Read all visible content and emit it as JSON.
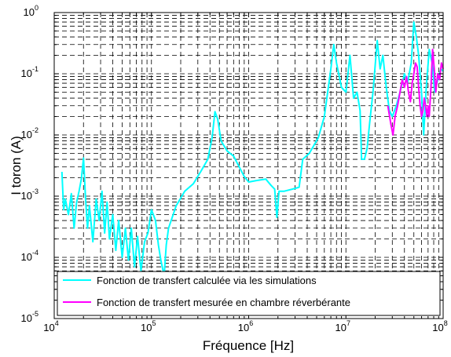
{
  "chart_data": {
    "type": "line",
    "xlabel": "Fréquence [Hz]",
    "ylabel": "I toron (A)",
    "x_scale": "log",
    "y_scale": "log",
    "xlim": [
      10000,
      100000000
    ],
    "ylim": [
      1e-05,
      1
    ],
    "grid": true,
    "legend_position": "bottom",
    "x_ticks": [
      {
        "base": "10",
        "exp": "4",
        "value": 10000
      },
      {
        "base": "10",
        "exp": "5",
        "value": 100000
      },
      {
        "base": "10",
        "exp": "6",
        "value": 1000000
      },
      {
        "base": "10",
        "exp": "7",
        "value": 10000000
      },
      {
        "base": "10",
        "exp": "8",
        "value": 100000000
      }
    ],
    "y_ticks": [
      {
        "base": "10",
        "exp": "-5",
        "value": 1e-05
      },
      {
        "base": "10",
        "exp": "-4",
        "value": 0.0001
      },
      {
        "base": "10",
        "exp": "-3",
        "value": 0.001
      },
      {
        "base": "10",
        "exp": "-2",
        "value": 0.01
      },
      {
        "base": "10",
        "exp": "-1",
        "value": 0.1
      },
      {
        "base": "10",
        "exp": "0",
        "value": 1
      }
    ],
    "series": [
      {
        "name": "Fonction de transfert calculée via les simulations",
        "color": "#00ffff",
        "points": [
          [
            12000,
            0.0025
          ],
          [
            12500,
            0.0006
          ],
          [
            13000,
            0.0009
          ],
          [
            14000,
            0.0005
          ],
          [
            15000,
            0.0011
          ],
          [
            16000,
            0.0003
          ],
          [
            17000,
            0.0008
          ],
          [
            18000,
            0.0012
          ],
          [
            19000,
            0.0019
          ],
          [
            20000,
            0.0042
          ],
          [
            21000,
            0.0009
          ],
          [
            22000,
            0.0003
          ],
          [
            23000,
            0.0007
          ],
          [
            25000,
            0.00018
          ],
          [
            27000,
            0.0009
          ],
          [
            29000,
            0.0004
          ],
          [
            31000,
            0.0012
          ],
          [
            33000,
            0.00025
          ],
          [
            35000,
            0.0008
          ],
          [
            37000,
            0.0002
          ],
          [
            40000,
            0.0005
          ],
          [
            43000,
            0.00013
          ],
          [
            46000,
            0.0004
          ],
          [
            50000,
            0.0001
          ],
          [
            54000,
            0.0003
          ],
          [
            58000,
            9e-05
          ],
          [
            62000,
            0.0003
          ],
          [
            67000,
            7e-05
          ],
          [
            72000,
            0.00022
          ],
          [
            78000,
            6e-05
          ],
          [
            85000,
            0.00018
          ],
          [
            92000,
            0.00025
          ],
          [
            100000,
            0.0006
          ],
          [
            110000,
            0.0004
          ],
          [
            118000,
            0.00016
          ],
          [
            125000,
            9e-05
          ],
          [
            135000,
            5e-05
          ],
          [
            142000,
            0.00016
          ],
          [
            150000,
            0.0003
          ],
          [
            180000,
            0.0007
          ],
          [
            220000,
            0.0012
          ],
          [
            270000,
            0.0016
          ],
          [
            320000,
            0.0025
          ],
          [
            380000,
            0.004
          ],
          [
            420000,
            0.009
          ],
          [
            450000,
            0.024
          ],
          [
            480000,
            0.018
          ],
          [
            520000,
            0.008
          ],
          [
            600000,
            0.0055
          ],
          [
            700000,
            0.0045
          ],
          [
            800000,
            0.003
          ],
          [
            900000,
            0.0021
          ],
          [
            1000000,
            0.0017
          ],
          [
            1200000,
            0.0018
          ],
          [
            1500000,
            0.0019
          ],
          [
            1700000,
            0.0015
          ],
          [
            1850000,
            0.0013
          ],
          [
            1950000,
            0.00045
          ],
          [
            2050000,
            0.0012
          ],
          [
            2300000,
            0.0012
          ],
          [
            2800000,
            0.0013
          ],
          [
            3300000,
            0.0014
          ],
          [
            3600000,
            0.004
          ],
          [
            4200000,
            0.005
          ],
          [
            5200000,
            0.009
          ],
          [
            6000000,
            0.02
          ],
          [
            7000000,
            0.12
          ],
          [
            7500000,
            0.3
          ],
          [
            8000000,
            0.15
          ],
          [
            9000000,
            0.06
          ],
          [
            10000000,
            0.05
          ],
          [
            11000000,
            0.2
          ],
          [
            12000000,
            0.04
          ],
          [
            13000000,
            0.05
          ],
          [
            14000000,
            0.025
          ],
          [
            14500000,
            0.004
          ],
          [
            15500000,
            0.004
          ],
          [
            16500000,
            0.006
          ],
          [
            17500000,
            0.015
          ],
          [
            19000000,
            0.05
          ],
          [
            21000000,
            0.35
          ],
          [
            22500000,
            0.12
          ],
          [
            24000000,
            0.2
          ],
          [
            26000000,
            0.06
          ],
          [
            28000000,
            0.025
          ],
          [
            30000000,
            0.02
          ],
          [
            33000000,
            0.03
          ],
          [
            36000000,
            0.05
          ],
          [
            40000000,
            0.1
          ],
          [
            43000000,
            0.07
          ],
          [
            47000000,
            0.15
          ],
          [
            50000000,
            0.7
          ],
          [
            53000000,
            0.4
          ],
          [
            56000000,
            0.2
          ],
          [
            60000000,
            0.05
          ],
          [
            63000000,
            0.01
          ],
          [
            67000000,
            0.06
          ],
          [
            72000000,
            0.25
          ],
          [
            77000000,
            0.15
          ],
          [
            82000000,
            0.05
          ],
          [
            88000000,
            0.08
          ],
          [
            95000000,
            0.12
          ],
          [
            100000000,
            0.11
          ]
        ]
      },
      {
        "name": "Fonction de transfert mesurée en chambre réverbérante",
        "color": "#ff00ff",
        "points": [
          [
            27000000,
            0.03
          ],
          [
            29000000,
            0.015
          ],
          [
            30500000,
            0.01
          ],
          [
            32000000,
            0.02
          ],
          [
            34000000,
            0.03
          ],
          [
            36000000,
            0.05
          ],
          [
            38000000,
            0.08
          ],
          [
            40000000,
            0.06
          ],
          [
            42000000,
            0.09
          ],
          [
            44000000,
            0.05
          ],
          [
            46000000,
            0.035
          ],
          [
            48000000,
            0.07
          ],
          [
            50000000,
            0.1
          ],
          [
            52000000,
            0.15
          ],
          [
            54000000,
            0.13
          ],
          [
            56000000,
            0.06
          ],
          [
            58000000,
            0.03
          ],
          [
            60000000,
            0.02
          ],
          [
            62000000,
            0.025
          ],
          [
            64000000,
            0.04
          ],
          [
            66000000,
            0.03
          ],
          [
            68000000,
            0.02
          ],
          [
            70000000,
            0.03
          ],
          [
            72000000,
            0.02
          ],
          [
            75000000,
            0.06
          ],
          [
            78000000,
            0.25
          ],
          [
            81000000,
            0.12
          ],
          [
            84000000,
            0.05
          ],
          [
            88000000,
            0.1
          ],
          [
            92000000,
            0.08
          ],
          [
            96000000,
            0.15
          ],
          [
            100000000,
            0.12
          ]
        ]
      }
    ]
  }
}
